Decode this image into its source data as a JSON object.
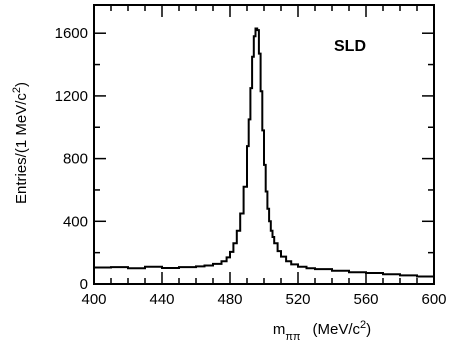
{
  "chart_data": {
    "type": "line",
    "title": "",
    "annotation": "SLD",
    "xlabel": {
      "main": "m",
      "sub": "ππ",
      "unit_open": "(MeV/c",
      "unit_sup": "2",
      "unit_close": ")"
    },
    "ylabel": {
      "main": "Entries/(1 MeV/c",
      "sup": "2",
      "close": ")"
    },
    "xlim": [
      400,
      600
    ],
    "ylim": [
      0,
      1780
    ],
    "xticks": [
      400,
      440,
      480,
      520,
      560,
      600
    ],
    "xtick_labels": [
      "400",
      "440",
      "480",
      "520",
      "560",
      "600"
    ],
    "yticks": [
      0,
      400,
      800,
      1200,
      1600
    ],
    "ytick_labels": [
      "0",
      "400",
      "800",
      "1200",
      "1600"
    ],
    "grid": false,
    "series": [
      {
        "style": "histogram",
        "color": "#000000",
        "x": [
          400,
          410,
          420,
          430,
          440,
          450,
          460,
          465,
          470,
          475,
          478,
          480,
          482,
          484,
          486,
          488,
          490,
          491,
          492,
          493,
          494,
          495,
          496,
          497,
          498,
          499,
          500,
          501,
          502,
          503,
          504,
          505,
          506,
          508,
          510,
          513,
          516,
          520,
          525,
          530,
          540,
          550,
          560,
          570,
          580,
          590,
          600
        ],
        "y": [
          105,
          108,
          100,
          110,
          102,
          108,
          112,
          118,
          128,
          145,
          170,
          205,
          260,
          340,
          450,
          620,
          880,
          1050,
          1250,
          1450,
          1580,
          1630,
          1620,
          1470,
          1230,
          980,
          760,
          590,
          480,
          400,
          340,
          300,
          260,
          210,
          175,
          145,
          125,
          110,
          100,
          95,
          85,
          75,
          70,
          62,
          55,
          48,
          42
        ]
      }
    ]
  }
}
